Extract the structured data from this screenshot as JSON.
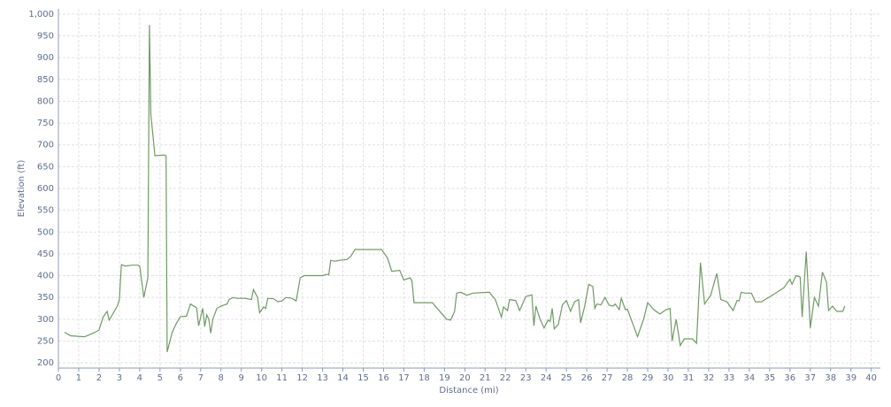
{
  "chart_data": {
    "type": "line",
    "xlabel": "Distance (mi)",
    "ylabel": "Elevation (ft)",
    "xlim": [
      0,
      40.45
    ],
    "ylim": [
      188,
      1012
    ],
    "xticks": [
      0,
      1,
      2,
      3,
      4,
      5,
      6,
      7,
      8,
      9,
      10,
      11,
      12,
      13,
      14,
      15,
      16,
      17,
      18,
      19,
      20,
      21,
      22,
      23,
      24,
      25,
      26,
      27,
      28,
      29,
      30,
      31,
      32,
      33,
      34,
      35,
      36,
      37,
      38,
      39,
      40
    ],
    "yticks": [
      200,
      250,
      300,
      350,
      400,
      450,
      500,
      550,
      600,
      650,
      700,
      750,
      800,
      850,
      900,
      950,
      {
        "value": 1000,
        "label": "1,000"
      }
    ],
    "grid": true,
    "series": [
      {
        "color": "#6f9a65",
        "x": [
          0.3,
          0.6,
          1.2,
          1.3,
          1.8,
          2.0,
          2.2,
          2.4,
          2.5,
          2.9,
          3.0,
          3.1,
          3.3,
          3.6,
          3.9,
          4.0,
          4.2,
          4.4,
          4.48,
          4.55,
          4.75,
          5.2,
          5.3,
          5.35,
          5.6,
          5.8,
          6.0,
          6.3,
          6.5,
          6.8,
          6.9,
          7.1,
          7.2,
          7.3,
          7.4,
          7.5,
          7.6,
          7.8,
          8.0,
          8.3,
          8.4,
          8.6,
          8.8,
          9.2,
          9.5,
          9.6,
          9.8,
          9.9,
          10.1,
          10.2,
          10.3,
          10.6,
          10.8,
          11.0,
          11.2,
          11.5,
          11.7,
          11.9,
          12.1,
          12.4,
          13.0,
          13.2,
          13.3,
          13.4,
          13.6,
          13.8,
          14.2,
          14.4,
          14.6,
          15.9,
          16.2,
          16.4,
          16.8,
          17.0,
          17.3,
          17.4,
          17.5,
          18.3,
          18.4,
          19.1,
          19.3,
          19.5,
          19.6,
          19.8,
          20.1,
          20.4,
          21.2,
          21.5,
          21.8,
          21.9,
          22.1,
          22.2,
          22.5,
          22.7,
          23.0,
          23.3,
          23.4,
          23.5,
          23.7,
          23.9,
          24.1,
          24.2,
          24.3,
          24.4,
          24.6,
          24.8,
          25.0,
          25.2,
          25.4,
          25.6,
          25.7,
          25.9,
          26.1,
          26.3,
          26.4,
          26.5,
          26.7,
          26.9,
          27.1,
          27.3,
          27.4,
          27.6,
          27.7,
          27.9,
          28.0,
          28.3,
          28.5,
          28.8,
          29.0,
          29.3,
          29.6,
          29.9,
          30.1,
          30.2,
          30.4,
          30.6,
          30.8,
          31.2,
          31.4,
          31.6,
          31.8,
          32.1,
          32.4,
          32.6,
          32.9,
          33.2,
          33.4,
          33.5,
          33.6,
          33.8,
          34.1,
          34.3,
          34.6,
          35.3,
          35.7,
          36.0,
          36.1,
          36.3,
          36.5,
          36.6,
          36.8,
          37.0,
          37.2,
          37.4,
          37.6,
          37.8,
          37.9,
          38.1,
          38.3,
          38.6,
          38.7
        ],
        "values": [
          270,
          262,
          260,
          260,
          270,
          275,
          305,
          318,
          298,
          330,
          345,
          425,
          422,
          424,
          424,
          422,
          350,
          395,
          975,
          770,
          675,
          677,
          675,
          225,
          270,
          290,
          306,
          307,
          335,
          326,
          285,
          325,
          283,
          310,
          300,
          268,
          300,
          325,
          330,
          335,
          345,
          350,
          348,
          348,
          345,
          368,
          350,
          315,
          328,
          325,
          348,
          347,
          340,
          342,
          350,
          348,
          342,
          395,
          400,
          400,
          400,
          403,
          402,
          435,
          433,
          435,
          437,
          445,
          460,
          460,
          440,
          410,
          412,
          390,
          395,
          388,
          338,
          338,
          338,
          300,
          298,
          318,
          360,
          362,
          355,
          360,
          362,
          345,
          305,
          328,
          320,
          345,
          343,
          320,
          352,
          356,
          285,
          330,
          300,
          280,
          298,
          295,
          325,
          278,
          288,
          333,
          343,
          318,
          340,
          345,
          292,
          330,
          380,
          375,
          325,
          335,
          333,
          350,
          332,
          330,
          335,
          322,
          348,
          322,
          323,
          285,
          260,
          300,
          338,
          322,
          312,
          322,
          325,
          250,
          300,
          240,
          255,
          255,
          245,
          430,
          335,
          355,
          405,
          345,
          340,
          320,
          343,
          342,
          362,
          360,
          360,
          340,
          340,
          360,
          372,
          392,
          380,
          400,
          397,
          305,
          455,
          280,
          350,
          330,
          408,
          385,
          320,
          330,
          318,
          318,
          330
        ]
      }
    ]
  }
}
